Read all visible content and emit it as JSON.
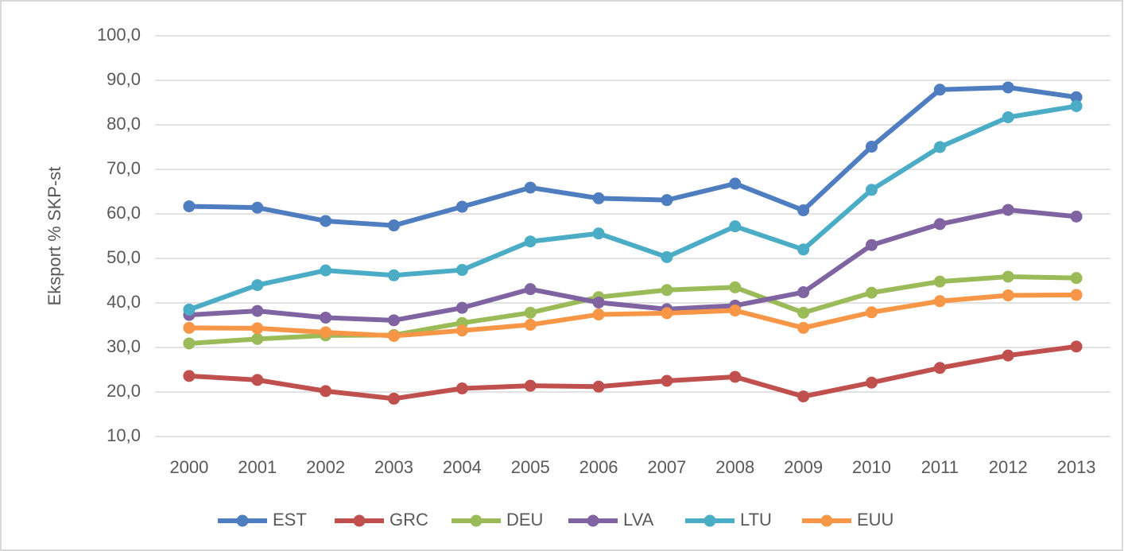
{
  "chart_data": {
    "type": "line",
    "y_label": "Eksport % SKP-st",
    "categories": [
      "2000",
      "2001",
      "2002",
      "2003",
      "2004",
      "2005",
      "2006",
      "2007",
      "2008",
      "2009",
      "2010",
      "2011",
      "2012",
      "2013"
    ],
    "series": [
      {
        "name": "EST",
        "color": "#4f7ec0",
        "values": [
          61.7,
          61.4,
          58.4,
          57.4,
          61.6,
          65.9,
          63.5,
          63.1,
          66.8,
          60.8,
          75.1,
          87.9,
          88.4,
          86.2
        ]
      },
      {
        "name": "GRC",
        "color": "#c0504d",
        "values": [
          23.6,
          22.7,
          20.2,
          18.5,
          20.8,
          21.4,
          21.2,
          22.5,
          23.4,
          19.0,
          22.1,
          25.4,
          28.2,
          30.2
        ]
      },
      {
        "name": "DEU",
        "color": "#9bbb59",
        "values": [
          30.9,
          31.9,
          32.7,
          32.8,
          35.5,
          37.8,
          41.3,
          42.9,
          43.5,
          37.8,
          42.3,
          44.8,
          45.9,
          45.6
        ]
      },
      {
        "name": "LVA",
        "color": "#8064a2",
        "values": [
          37.3,
          38.2,
          36.7,
          36.1,
          38.9,
          43.1,
          40.1,
          38.6,
          39.4,
          42.4,
          53.0,
          57.7,
          60.9,
          59.4
        ]
      },
      {
        "name": "LTU",
        "color": "#4bacc6",
        "values": [
          38.5,
          44.0,
          47.3,
          46.2,
          47.4,
          53.8,
          55.6,
          50.3,
          57.2,
          52.0,
          65.4,
          75.0,
          81.7,
          84.2
        ]
      },
      {
        "name": "EUU",
        "color": "#f79646",
        "values": [
          34.4,
          34.3,
          33.4,
          32.6,
          33.8,
          35.1,
          37.4,
          37.7,
          38.3,
          34.4,
          37.9,
          40.4,
          41.7,
          41.8
        ]
      }
    ],
    "ylim": [
      10,
      100
    ],
    "yticks": [
      {
        "value": 10,
        "label": "10,0"
      },
      {
        "value": 20,
        "label": "20,0"
      },
      {
        "value": 30,
        "label": "30,0"
      },
      {
        "value": 40,
        "label": "40,0"
      },
      {
        "value": 50,
        "label": "50,0"
      },
      {
        "value": 60,
        "label": "60,0"
      },
      {
        "value": 70,
        "label": "70,0"
      },
      {
        "value": 80,
        "label": "80,0"
      },
      {
        "value": 90,
        "label": "90,0"
      },
      {
        "value": 100,
        "label": "100,0"
      }
    ],
    "grid": true
  }
}
